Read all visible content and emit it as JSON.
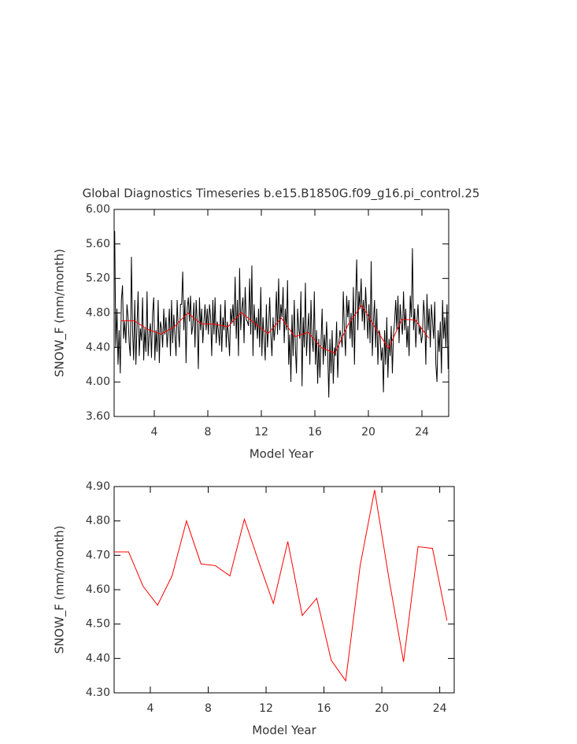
{
  "chart_data": [
    {
      "type": "line",
      "title": "Global Diagnostics Timeseries b.e15.B1850G.f09_g16.pi_control.25",
      "xlabel": "Model Year",
      "ylabel": "SNOW_F (mm/month)",
      "xlim": [
        1,
        26
      ],
      "ylim": [
        3.6,
        6.0
      ],
      "xticks": [
        4,
        8,
        12,
        16,
        20,
        24
      ],
      "yticks": [
        {
          "value": 3.6,
          "label": "3.60"
        },
        {
          "value": 4.0,
          "label": "4.00"
        },
        {
          "value": 4.4,
          "label": "4.40"
        },
        {
          "value": 4.8,
          "label": "4.80"
        },
        {
          "value": 5.2,
          "label": "5.20"
        },
        {
          "value": 5.6,
          "label": "5.60"
        },
        {
          "value": 6.0,
          "label": "6.00"
        }
      ],
      "series": [
        {
          "color": "#000000",
          "x": [
            1.042,
            1.125,
            1.208,
            1.292,
            1.375,
            1.458,
            1.542,
            1.625,
            1.708,
            1.792,
            1.875,
            1.958,
            2.042,
            2.125,
            2.208,
            2.292,
            2.375,
            2.458,
            2.542,
            2.625,
            2.708,
            2.792,
            2.875,
            2.958,
            3.042,
            3.125,
            3.208,
            3.292,
            3.375,
            3.458,
            3.542,
            3.625,
            3.708,
            3.792,
            3.875,
            3.958,
            4.042,
            4.125,
            4.208,
            4.292,
            4.375,
            4.458,
            4.542,
            4.625,
            4.708,
            4.792,
            4.875,
            4.958,
            5.042,
            5.125,
            5.208,
            5.292,
            5.375,
            5.458,
            5.542,
            5.625,
            5.708,
            5.792,
            5.875,
            5.958,
            6.042,
            6.125,
            6.208,
            6.292,
            6.375,
            6.458,
            6.542,
            6.625,
            6.708,
            6.792,
            6.875,
            6.958,
            7.042,
            7.125,
            7.208,
            7.292,
            7.375,
            7.458,
            7.542,
            7.625,
            7.708,
            7.792,
            7.875,
            7.958,
            8.042,
            8.125,
            8.208,
            8.292,
            8.375,
            8.458,
            8.542,
            8.625,
            8.708,
            8.792,
            8.875,
            8.958,
            9.042,
            9.125,
            9.208,
            9.292,
            9.375,
            9.458,
            9.542,
            9.625,
            9.708,
            9.792,
            9.875,
            9.958,
            10.042,
            10.125,
            10.208,
            10.292,
            10.375,
            10.458,
            10.542,
            10.625,
            10.708,
            10.792,
            10.875,
            10.958,
            11.042,
            11.125,
            11.208,
            11.292,
            11.375,
            11.458,
            11.542,
            11.625,
            11.708,
            11.792,
            11.875,
            11.958,
            12.042,
            12.125,
            12.208,
            12.292,
            12.375,
            12.458,
            12.542,
            12.625,
            12.708,
            12.792,
            12.875,
            12.958,
            13.042,
            13.125,
            13.208,
            13.292,
            13.375,
            13.458,
            13.542,
            13.625,
            13.708,
            13.792,
            13.875,
            13.958,
            14.042,
            14.125,
            14.208,
            14.292,
            14.375,
            14.458,
            14.542,
            14.625,
            14.708,
            14.792,
            14.875,
            14.958,
            15.042,
            15.125,
            15.208,
            15.292,
            15.375,
            15.458,
            15.542,
            15.625,
            15.708,
            15.792,
            15.875,
            15.958,
            16.042,
            16.125,
            16.208,
            16.292,
            16.375,
            16.458,
            16.542,
            16.625,
            16.708,
            16.792,
            16.875,
            16.958,
            17.042,
            17.125,
            17.208,
            17.292,
            17.375,
            17.458,
            17.542,
            17.625,
            17.708,
            17.792,
            17.875,
            17.958,
            18.042,
            18.125,
            18.208,
            18.292,
            18.375,
            18.458,
            18.542,
            18.625,
            18.708,
            18.792,
            18.875,
            18.958,
            19.042,
            19.125,
            19.208,
            19.292,
            19.375,
            19.458,
            19.542,
            19.625,
            19.708,
            19.792,
            19.875,
            19.958,
            20.042,
            20.125,
            20.208,
            20.292,
            20.375,
            20.458,
            20.542,
            20.625,
            20.708,
            20.792,
            20.875,
            20.958,
            21.042,
            21.125,
            21.208,
            21.292,
            21.375,
            21.458,
            21.542,
            21.625,
            21.708,
            21.792,
            21.875,
            21.958,
            22.042,
            22.125,
            22.208,
            22.292,
            22.375,
            22.458,
            22.542,
            22.625,
            22.708,
            22.792,
            22.875,
            22.958,
            23.042,
            23.125,
            23.208,
            23.292,
            23.375,
            23.458,
            23.542,
            23.625,
            23.708,
            23.792,
            23.875,
            23.958,
            24.042,
            24.125,
            24.208,
            24.292,
            24.375,
            24.458,
            24.542,
            24.625,
            24.708,
            24.792,
            24.875,
            24.958,
            25.042,
            25.125,
            25.208,
            25.292,
            25.375,
            25.458,
            25.542,
            25.625,
            25.708,
            25.792,
            25.875,
            25.958
          ],
          "values": [
            5.75,
            4.4,
            4.85,
            4.2,
            4.6,
            4.1,
            4.95,
            5.12,
            4.5,
            4.7,
            4.45,
            4.9,
            4.75,
            4.45,
            4.3,
            5.45,
            4.6,
            4.25,
            4.95,
            4.2,
            4.65,
            5.05,
            4.3,
            4.62,
            4.48,
            4.98,
            4.25,
            4.62,
            4.35,
            5.05,
            4.3,
            4.55,
            4.68,
            4.28,
            4.8,
            4.98,
            4.25,
            4.6,
            4.35,
            4.95,
            4.22,
            4.7,
            4.62,
            4.4,
            4.85,
            4.55,
            4.75,
            4.4,
            4.6,
            4.85,
            4.3,
            4.95,
            4.45,
            4.78,
            4.55,
            4.3,
            4.95,
            4.62,
            4.4,
            4.9,
            4.9,
            5.28,
            4.6,
            4.95,
            4.22,
            4.85,
            4.98,
            4.7,
            5.0,
            4.55,
            4.65,
            4.92,
            4.4,
            4.95,
            4.7,
            4.15,
            4.98,
            4.6,
            4.85,
            4.45,
            4.7,
            4.9,
            4.6,
            4.85,
            4.55,
            4.9,
            4.75,
            4.3,
            4.95,
            4.55,
            4.98,
            4.45,
            4.7,
            4.6,
            4.42,
            4.9,
            4.35,
            4.75,
            4.6,
            4.95,
            4.4,
            4.7,
            4.55,
            4.3,
            4.85,
            4.68,
            4.9,
            4.65,
            5.22,
            4.5,
            4.95,
            4.3,
            5.32,
            4.6,
            4.85,
            4.98,
            4.45,
            5.1,
            4.72,
            4.7,
            4.65,
            5.2,
            4.55,
            5.35,
            4.3,
            4.9,
            4.6,
            4.75,
            4.5,
            4.85,
            4.4,
            5.1,
            4.3,
            4.75,
            4.5,
            4.25,
            4.9,
            4.4,
            4.65,
            4.98,
            4.55,
            4.3,
            4.75,
            4.48,
            4.65,
            5.05,
            4.55,
            5.2,
            4.6,
            4.9,
            4.75,
            5.1,
            4.45,
            4.85,
            4.6,
            5.18,
            4.2,
            4.55,
            4.0,
            4.78,
            4.3,
            4.95,
            4.4,
            4.1,
            4.85,
            4.62,
            4.5,
            5.05,
            3.95,
            4.75,
            4.4,
            5.15,
            4.3,
            4.6,
            4.8,
            4.2,
            4.95,
            4.5,
            4.35,
            5.05,
            4.2,
            4.6,
            3.98,
            4.5,
            4.05,
            4.45,
            4.85,
            4.2,
            4.55,
            4.3,
            4.7,
            4.35,
            3.82,
            4.5,
            4.1,
            4.6,
            3.98,
            4.4,
            4.3,
            4.7,
            4.05,
            4.45,
            4.6,
            4.52,
            4.4,
            5.05,
            4.6,
            4.3,
            5.0,
            4.75,
            4.95,
            4.5,
            4.8,
            4.4,
            5.1,
            4.2,
            4.95,
            5.42,
            4.6,
            5.05,
            4.85,
            5.2,
            4.7,
            4.95,
            4.6,
            5.1,
            4.8,
            4.5,
            4.9,
            4.45,
            5.4,
            4.3,
            4.7,
            4.95,
            4.4,
            4.85,
            4.2,
            4.6,
            4.55,
            4.25,
            4.4,
            3.88,
            4.6,
            4.2,
            4.75,
            4.05,
            4.5,
            4.3,
            4.65,
            4.1,
            4.55,
            4.7,
            4.95,
            4.6,
            5.0,
            4.45,
            4.9,
            4.7,
            4.55,
            5.05,
            4.6,
            4.85,
            4.4,
            4.65,
            4.3,
            5.0,
            4.75,
            5.55,
            4.6,
            4.85,
            4.4,
            4.7,
            4.9,
            4.55,
            4.65,
            4.45,
            4.55,
            4.95,
            4.75,
            4.2,
            5.02,
            4.6,
            4.85,
            4.4,
            4.9,
            4.7,
            4.5,
            4.93,
            4.2,
            4.0,
            4.6,
            4.35,
            4.7,
            4.1,
            4.95,
            4.5,
            4.75,
            4.4,
            4.9,
            4.15
          ]
        },
        {
          "color": "#ff0000",
          "x": [
            1.5,
            2.5,
            3.5,
            4.5,
            5.5,
            6.5,
            7.5,
            8.5,
            9.5,
            10.5,
            11.5,
            12.5,
            13.5,
            14.5,
            15.5,
            16.5,
            17.5,
            18.5,
            19.5,
            20.5,
            21.5,
            22.5,
            23.5,
            24.5
          ],
          "values": [
            4.71,
            4.71,
            4.61,
            4.555,
            4.64,
            4.8,
            4.675,
            4.67,
            4.64,
            4.805,
            4.68,
            4.56,
            4.74,
            4.525,
            4.575,
            4.395,
            4.335,
            4.67,
            4.89,
            4.63,
            4.39,
            4.725,
            4.72,
            4.51
          ]
        }
      ]
    },
    {
      "type": "line",
      "xlabel": "Model Year",
      "ylabel": "SNOW_F (mm/month)",
      "xlim": [
        1.5,
        25
      ],
      "ylim": [
        4.3,
        4.9
      ],
      "xticks": [
        4,
        8,
        12,
        16,
        20,
        24
      ],
      "yticks": [
        {
          "value": 4.3,
          "label": "4.30"
        },
        {
          "value": 4.4,
          "label": "4.40"
        },
        {
          "value": 4.5,
          "label": "4.50"
        },
        {
          "value": 4.6,
          "label": "4.60"
        },
        {
          "value": 4.7,
          "label": "4.70"
        },
        {
          "value": 4.8,
          "label": "4.80"
        },
        {
          "value": 4.9,
          "label": "4.90"
        }
      ],
      "series": [
        {
          "color": "#ff0000",
          "x": [
            1.5,
            2.5,
            3.5,
            4.5,
            5.5,
            6.5,
            7.5,
            8.5,
            9.5,
            10.5,
            11.5,
            12.5,
            13.5,
            14.5,
            15.5,
            16.5,
            17.5,
            18.5,
            19.5,
            20.5,
            21.5,
            22.5,
            23.5,
            24.5
          ],
          "values": [
            4.71,
            4.71,
            4.61,
            4.555,
            4.64,
            4.8,
            4.675,
            4.67,
            4.64,
            4.805,
            4.68,
            4.56,
            4.74,
            4.525,
            4.575,
            4.395,
            4.335,
            4.67,
            4.89,
            4.63,
            4.39,
            4.725,
            4.72,
            4.51
          ]
        }
      ]
    }
  ]
}
